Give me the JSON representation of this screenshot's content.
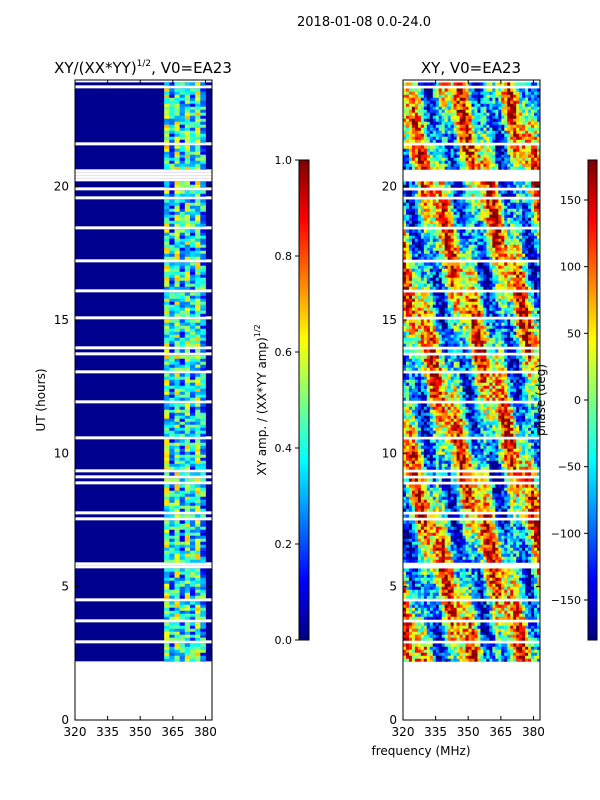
{
  "suptitle": "2018-01-08 0.0-24.0",
  "xlabel_shared": "frequency (MHz)",
  "colors": {
    "jet": [
      "#00007f",
      "#0000ff",
      "#007fff",
      "#00ffff",
      "#7fff7f",
      "#ffff00",
      "#ff7f00",
      "#ff0000",
      "#7f0000"
    ],
    "background": "#ffffff",
    "low": "#00008f"
  },
  "chart_data": [
    {
      "type": "heatmap",
      "title": "XY/(XX*YY)^1/2, V0=EA23",
      "title_main": "XY/(XX*YY)",
      "title_sup": "1/2",
      "title_tail": ", V0=EA23",
      "ylabel": "UT (hours)",
      "xlim": [
        320,
        383
      ],
      "ylim": [
        0,
        24
      ],
      "xticks": [
        "320",
        "335",
        "350",
        "365",
        "380"
      ],
      "xtick_values": [
        320,
        335,
        350,
        365,
        380
      ],
      "yticks": [
        "0",
        "5",
        "10",
        "15",
        "20"
      ],
      "ytick_values": [
        0,
        5,
        10,
        15,
        20
      ],
      "data_start_ut": 2.2,
      "active_band_mhz": [
        361,
        380
      ],
      "colorbar": {
        "label": "XY amp. / (XX*YY amp)^1/2",
        "label_main": "XY amp. / (XX*YY amp)",
        "label_sup": "1/2",
        "range": [
          0.0,
          1.0
        ],
        "ticks": [
          "0.0",
          "0.2",
          "0.4",
          "0.6",
          "0.8",
          "1.0"
        ],
        "tick_values": [
          0.0,
          0.2,
          0.4,
          0.6,
          0.8,
          1.0
        ]
      }
    },
    {
      "type": "heatmap",
      "title": "XY, V0=EA23",
      "xlim": [
        320,
        383
      ],
      "ylim": [
        0,
        24
      ],
      "xticks": [
        "320",
        "335",
        "350",
        "365",
        "380"
      ],
      "xtick_values": [
        320,
        335,
        350,
        365,
        380
      ],
      "yticks": [
        "0",
        "5",
        "10",
        "15",
        "20"
      ],
      "ytick_values": [
        0,
        5,
        10,
        15,
        20
      ],
      "data_start_ut": 2.2,
      "colorbar": {
        "label": "phase (deg)",
        "range": [
          -180,
          180
        ],
        "ticks": [
          "−150",
          "−100",
          "−50",
          "0",
          "50",
          "100",
          "150"
        ],
        "tick_values": [
          -150,
          -100,
          -50,
          0,
          50,
          100,
          150
        ]
      }
    }
  ]
}
